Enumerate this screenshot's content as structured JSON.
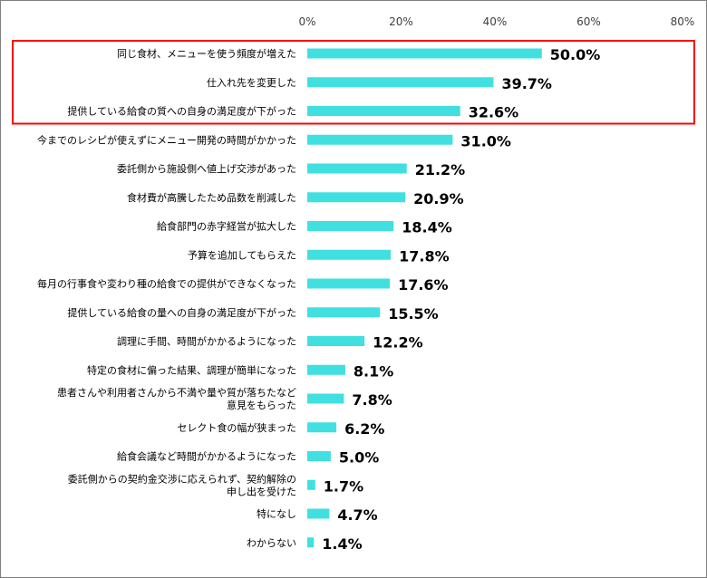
{
  "chart_data": {
    "type": "bar",
    "orientation": "horizontal",
    "title": "",
    "xlabel": "",
    "ylabel": "",
    "xlim": [
      0,
      80
    ],
    "x_ticks": [
      "0%",
      "20%",
      "40%",
      "60%",
      "80%"
    ],
    "x_tick_values": [
      0,
      20,
      40,
      60,
      80
    ],
    "value_suffix": "%",
    "grid": false,
    "legend": "none",
    "bar_color": "#40E0E0",
    "highlight_color": "#FF0000",
    "highlight_indices": [
      0,
      1,
      2
    ],
    "categories": [
      [
        "同じ食材、メニューを使う頻度が増えた"
      ],
      [
        "仕入れ先を変更した"
      ],
      [
        "提供している給食の質への自身の満足度が下がった"
      ],
      [
        "今までのレシピが使えずにメニュー開発の時間がかかった"
      ],
      [
        "委託側から施設側へ値上げ交渉があった"
      ],
      [
        "食材費が高騰したため品数を削減した"
      ],
      [
        "給食部門の赤字経営が拡大した"
      ],
      [
        "予算を追加してもらえた"
      ],
      [
        "毎月の行事食や変わり種の給食での提供ができなくなった"
      ],
      [
        "提供している給食の量への自身の満足度が下がった"
      ],
      [
        "調理に手間、時間がかかるようになった"
      ],
      [
        "特定の食材に偏った結果、調理が簡単になった"
      ],
      [
        "患者さんや利用者さんから不満や量や質が落ちたなど",
        "意見をもらった"
      ],
      [
        "セレクト食の幅が狭まった"
      ],
      [
        "給食会議など時間がかかるようになった"
      ],
      [
        "委託側からの契約金交渉に応えられず、契約解除の",
        "申し出を受けた"
      ],
      [
        "特になし"
      ],
      [
        "わからない"
      ]
    ],
    "values": [
      50.0,
      39.7,
      32.6,
      31.0,
      21.2,
      20.9,
      18.4,
      17.8,
      17.6,
      15.5,
      12.2,
      8.1,
      7.8,
      6.2,
      5.0,
      1.7,
      4.7,
      1.4
    ],
    "data_labels": [
      "50.0%",
      "39.7%",
      "32.6%",
      "31.0%",
      "21.2%",
      "20.9%",
      "18.4%",
      "17.8%",
      "17.6%",
      "15.5%",
      "12.2%",
      "8.1%",
      "7.8%",
      "6.2%",
      "5.0%",
      "1.7%",
      "4.7%",
      "1.4%"
    ]
  }
}
